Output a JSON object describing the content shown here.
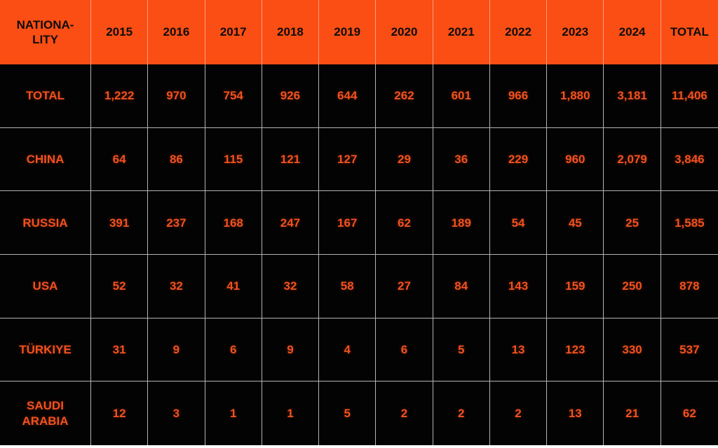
{
  "colors": {
    "header_bg": "#FB4E14",
    "header_text": "#0D0D0D",
    "body_bg": "#030303",
    "body_text": "#F2511F",
    "grid_line": "#B3B3B3"
  },
  "table": {
    "header": {
      "nationality_label": "NATIONA-\nLITY",
      "columns": [
        "2015",
        "2016",
        "2017",
        "2018",
        "2019",
        "2020",
        "2021",
        "2022",
        "2023",
        "2024",
        "TOTAL"
      ]
    },
    "rows": [
      {
        "label": "TOTAL",
        "values": [
          "1,222",
          "970",
          "754",
          "926",
          "644",
          "262",
          "601",
          "966",
          "1,880",
          "3,181",
          "11,406"
        ]
      },
      {
        "label": "CHINA",
        "values": [
          "64",
          "86",
          "115",
          "121",
          "127",
          "29",
          "36",
          "229",
          "960",
          "2,079",
          "3,846"
        ]
      },
      {
        "label": "RUSSIA",
        "values": [
          "391",
          "237",
          "168",
          "247",
          "167",
          "62",
          "189",
          "54",
          "45",
          "25",
          "1,585"
        ]
      },
      {
        "label": "USA",
        "values": [
          "52",
          "32",
          "41",
          "32",
          "58",
          "27",
          "84",
          "143",
          "159",
          "250",
          "878"
        ]
      },
      {
        "label": "TÜRKIYE",
        "values": [
          "31",
          "9",
          "6",
          "9",
          "4",
          "6",
          "5",
          "13",
          "123",
          "330",
          "537"
        ]
      },
      {
        "label": "SAUDI\nARABIA",
        "values": [
          "12",
          "3",
          "1",
          "1",
          "5",
          "2",
          "2",
          "2",
          "13",
          "21",
          "62"
        ]
      }
    ]
  },
  "chart_data": {
    "type": "table",
    "title": "Counts by nationality and year",
    "columns": [
      "NATIONALITY",
      "2015",
      "2016",
      "2017",
      "2018",
      "2019",
      "2020",
      "2021",
      "2022",
      "2023",
      "2024",
      "TOTAL"
    ],
    "rows": [
      {
        "nationality": "TOTAL",
        "values": [
          1222,
          970,
          754,
          926,
          644,
          262,
          601,
          966,
          1880,
          3181
        ],
        "total": 11406
      },
      {
        "nationality": "CHINA",
        "values": [
          64,
          86,
          115,
          121,
          127,
          29,
          36,
          229,
          960,
          2079
        ],
        "total": 3846
      },
      {
        "nationality": "RUSSIA",
        "values": [
          391,
          237,
          168,
          247,
          167,
          62,
          189,
          54,
          45,
          25
        ],
        "total": 1585
      },
      {
        "nationality": "USA",
        "values": [
          52,
          32,
          41,
          32,
          58,
          27,
          84,
          143,
          159,
          250
        ],
        "total": 878
      },
      {
        "nationality": "TÜRKIYE",
        "values": [
          31,
          9,
          6,
          9,
          4,
          6,
          5,
          13,
          123,
          330
        ],
        "total": 537
      },
      {
        "nationality": "SAUDI ARABIA",
        "values": [
          12,
          3,
          1,
          1,
          5,
          2,
          2,
          2,
          13,
          21
        ],
        "total": 62
      }
    ]
  }
}
